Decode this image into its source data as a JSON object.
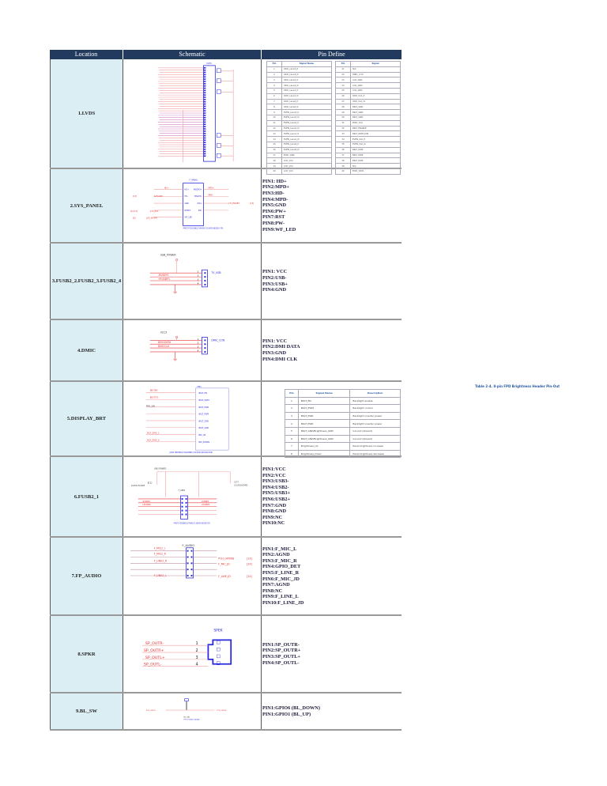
{
  "headers": {
    "location": "Location",
    "schematic": "Schematic",
    "pin_define": "Pin Define"
  },
  "rows": [
    {
      "location": "1.LVDS",
      "schematic": {
        "title": "LVDS"
      },
      "lvds_table": {
        "cols": [
          "Pin",
          "Signal Name",
          "Pin",
          "Signal"
        ],
        "left": [
          [
            "1",
            "ODD_Lane3_P"
          ],
          [
            "2",
            "ODD_Lane3_N"
          ],
          [
            "3",
            "ODD_Lane2_P"
          ],
          [
            "4",
            "ODD_Lane2_N"
          ],
          [
            "5",
            "ODD_Lane1_P"
          ],
          [
            "6",
            "ODD_Lane1_N"
          ],
          [
            "7",
            "ODD_Lane0_P"
          ],
          [
            "8",
            "ODD_Lane0_N"
          ],
          [
            "9",
            "EVEN_Lane3_P"
          ],
          [
            "10",
            "EVEN_Lane3_N"
          ],
          [
            "11",
            "EVEN_Lane2_P"
          ],
          [
            "12",
            "EVEN_Lane2_N"
          ],
          [
            "13",
            "EVEN_Lane1_P"
          ],
          [
            "14",
            "EVEN_Lane1_N"
          ],
          [
            "15",
            "EVEN_Lane0_P"
          ],
          [
            "16",
            "EVEN_Lane0_N"
          ],
          [
            "17",
            "EDID_GND"
          ],
          [
            "18",
            "LCD_VCC"
          ],
          [
            "19",
            "LCD_VCC"
          ],
          [
            "20",
            "LCD_VCC"
          ]
        ],
        "right": [
          [
            "21",
            "N/C"
          ],
          [
            "22",
            "PNEL_3.3V"
          ],
          [
            "23",
            "LCD_GND"
          ],
          [
            "24",
            "LCD_GND"
          ],
          [
            "25",
            "LCD_GND"
          ],
          [
            "26",
            "ODD_CLK_P"
          ],
          [
            "27",
            "ODD_CLK_N"
          ],
          [
            "28",
            "BKLT_GND"
          ],
          [
            "29",
            "BKLT_GND"
          ],
          [
            "30",
            "BKLT_GND"
          ],
          [
            "31",
            "EDID_CLK"
          ],
          [
            "32",
            "BKLT_ENABLE"
          ],
          [
            "33",
            "BKLT_PWM_DIM"
          ],
          [
            "34",
            "EVEN_CLK_P"
          ],
          [
            "35",
            "EVEN_CLK_N"
          ],
          [
            "36",
            "BKLT_PWR"
          ],
          [
            "37",
            "BKLT_PWR"
          ],
          [
            "38",
            "BKLT_PWR"
          ],
          [
            "39",
            "N/C"
          ],
          [
            "40",
            "EDID_DATA"
          ]
        ]
      }
    },
    {
      "location": "2.SYS_PANEL",
      "schematic": {
        "title": "F_PANEL",
        "part": "PHD*5*2S10BK2.54VAD(*119HD-06028-1*R)",
        "left_nets": [
          "HD+",
          "SATALED",
          "SYS_RST",
          "LED_WARM"
        ],
        "left_refs": [
          "[13]",
          "[12,13]",
          "[8]"
        ],
        "pins_left": [
          "HD+",
          "HD-",
          "GND",
          "RESET",
          "WF_LED"
        ],
        "pins_right": [
          "MSGPD+",
          "MSGPD-",
          "PW+",
          "PW-"
        ],
        "right_nets": [
          "MPD+",
          "MPD-",
          "CH_PWRBT"
        ],
        "right_refs": [
          "[13]"
        ]
      },
      "pins": [
        "PIN1: HD+",
        "PIN2:MPD+",
        "PIN3:HD-",
        "PIN4:MPD-",
        "PIN5:GND",
        "PIN6:PW+",
        "PIN7:RST",
        "PIN8:PW-",
        "PIN9:WF_LED"
      ]
    },
    {
      "location": "3.FUSB2_2.FUSB2_3.FUSB2_4",
      "schematic": {
        "power": "USB_POWER",
        "title": "TV_USB",
        "nets": [
          "-RUSBP1",
          "+RUSBP1"
        ],
        "pin_nums": [
          "1",
          "2",
          "3",
          "4"
        ]
      },
      "pins": [
        "PIN1: VCC",
        "PIN2:USB-",
        "PIN3:USB+",
        "PIN4:GND"
      ]
    },
    {
      "location": "4.DMIC",
      "schematic": {
        "power": "VCC3",
        "title": "DMIC_CON",
        "nets": [
          "DMICDATA",
          "DMICCLK"
        ],
        "pin_nums": [
          "1",
          "2",
          "3",
          "4"
        ]
      },
      "pins": [
        "PIN1: VCC",
        "PIN2:DMI DATA",
        "PIN3:GND",
        "PIN4:DMI CLK"
      ]
    },
    {
      "location": "5.DISPLAY_BRT",
      "schematic": {
        "title": "FPD",
        "part": "JWV1*8P/REG2.0VAD/BRC(*119HD-040109-32R)",
        "nets": [
          "BKLTEN",
          "BKLTCTL",
          "FPD_18V",
          "PCH_GPIO_1",
          "PCH_GPIO_6"
        ],
        "pins": [
          "BKLT_EN",
          "BKLT_PWM",
          "BKLT_PWR",
          "BKLT_PWR",
          "BKLT_GND",
          "BKLT_GND",
          "BRI_UP",
          "BRI_DOWN"
        ]
      },
      "brt_table": {
        "title": "Table 2-4.  8-pin FPD Brightness Header Pin-Out",
        "cols": [
          "Pin",
          "Signal Name",
          "Description"
        ],
        "rows": [
          [
            "1",
            "BKLT_EN",
            "Backlight enable"
          ],
          [
            "2",
            "BKLT_PWM",
            "Backlight control"
          ],
          [
            "3",
            "BKLT_PWR",
            "Backlight inverter power"
          ],
          [
            "4",
            "BKLT_PWR",
            "Backlight inverter power"
          ],
          [
            "5",
            "BKLT_GND/Brightness_GND",
            "Ground (shared)"
          ],
          [
            "6",
            "BKLT_GND/Brightness_GND",
            "Ground (shared)"
          ],
          [
            "7",
            "Brightness_Up",
            "Panel brightness increase"
          ],
          [
            "8",
            "Brightness_Down",
            "Panel brightness decrease"
          ]
        ]
      }
    },
    {
      "location": "6.FUSB2_1",
      "schematic": {
        "power": "USB_POWER2",
        "cap1": "BC12",
        "cap1_val": "10uF/6.3V/1005",
        "cap2": "C177",
        "cap2_val": "0.1uF/16V/0402",
        "title": "F_USB1",
        "nets_left": [
          "-RUSBP0",
          "+RUSBP0"
        ],
        "nets_right": [
          "-RUSBP2",
          "+RUSBP2"
        ],
        "part": "PHD*5*2S0BK2.54VAD(*119HD-05028-7)R"
      },
      "pins": [
        "PIN1:VCC",
        "PIN2:VCC",
        "PIN3:USB3-",
        "PIN4:USB2-",
        "PIN5:USB3+",
        "PIN6:USB2+",
        "PIN7:GND",
        "PIN8:GND",
        "PIN9:NC",
        "PIN10:NC"
      ]
    },
    {
      "location": "7.FP_AUDIO",
      "schematic": {
        "title": "F_AUDIO",
        "nets_left": [
          "F_MIC2_L",
          "F_MIC2_R",
          "F_LINE2_R",
          "F_LINE2_L"
        ],
        "nets_right": [
          "PCH_GPIO68",
          "F_MIC_JD",
          "F_LINE_JD"
        ],
        "refs": [
          "[13]",
          "[24]",
          "[24]"
        ]
      },
      "pins": [
        "PIN1:F_MIC_L",
        "PIN2:AGND",
        "PIN3:F_MIC_R",
        "PIN4:GPIO_DET",
        "PIN5:F_LINE_R",
        "PIN6:F_MIC_JD",
        "PIN7:AGND",
        "PIN8:NC",
        "PIN9:F_LINE_L",
        "PIN10:F_LINE_JD"
      ]
    },
    {
      "location": "8.SPKR",
      "schematic": {
        "title": "SPEK",
        "nets": [
          "SP_OUTR-",
          "SP_OUTR+",
          "SP_OUTL+",
          "SP_OUTL-"
        ],
        "pin_nums": [
          "1",
          "2",
          "3",
          "4"
        ]
      },
      "pins": [
        "PIN1:SP_OUTR-",
        "PIN2:SP_OUTR+",
        "PIN3:SP_OUTL+",
        "PIN4:SP_OUTL-"
      ]
    },
    {
      "location": "9.BL_SW",
      "schematic": {
        "title": "BL_SW",
        "part": "PH*1*2BK2.54VAD",
        "nets": [
          "PCH_GPIO1",
          "PCH_GPIO6"
        ]
      },
      "pins": [
        "PIN1:GPIO6 (BL_DOWN)",
        "PIN1:GPIO1 (BL_UP)"
      ]
    }
  ],
  "colors": {
    "header": "#223a5e",
    "location_bg": "#dbeef3",
    "net": "#e83030",
    "component": "#2a2ae0"
  }
}
